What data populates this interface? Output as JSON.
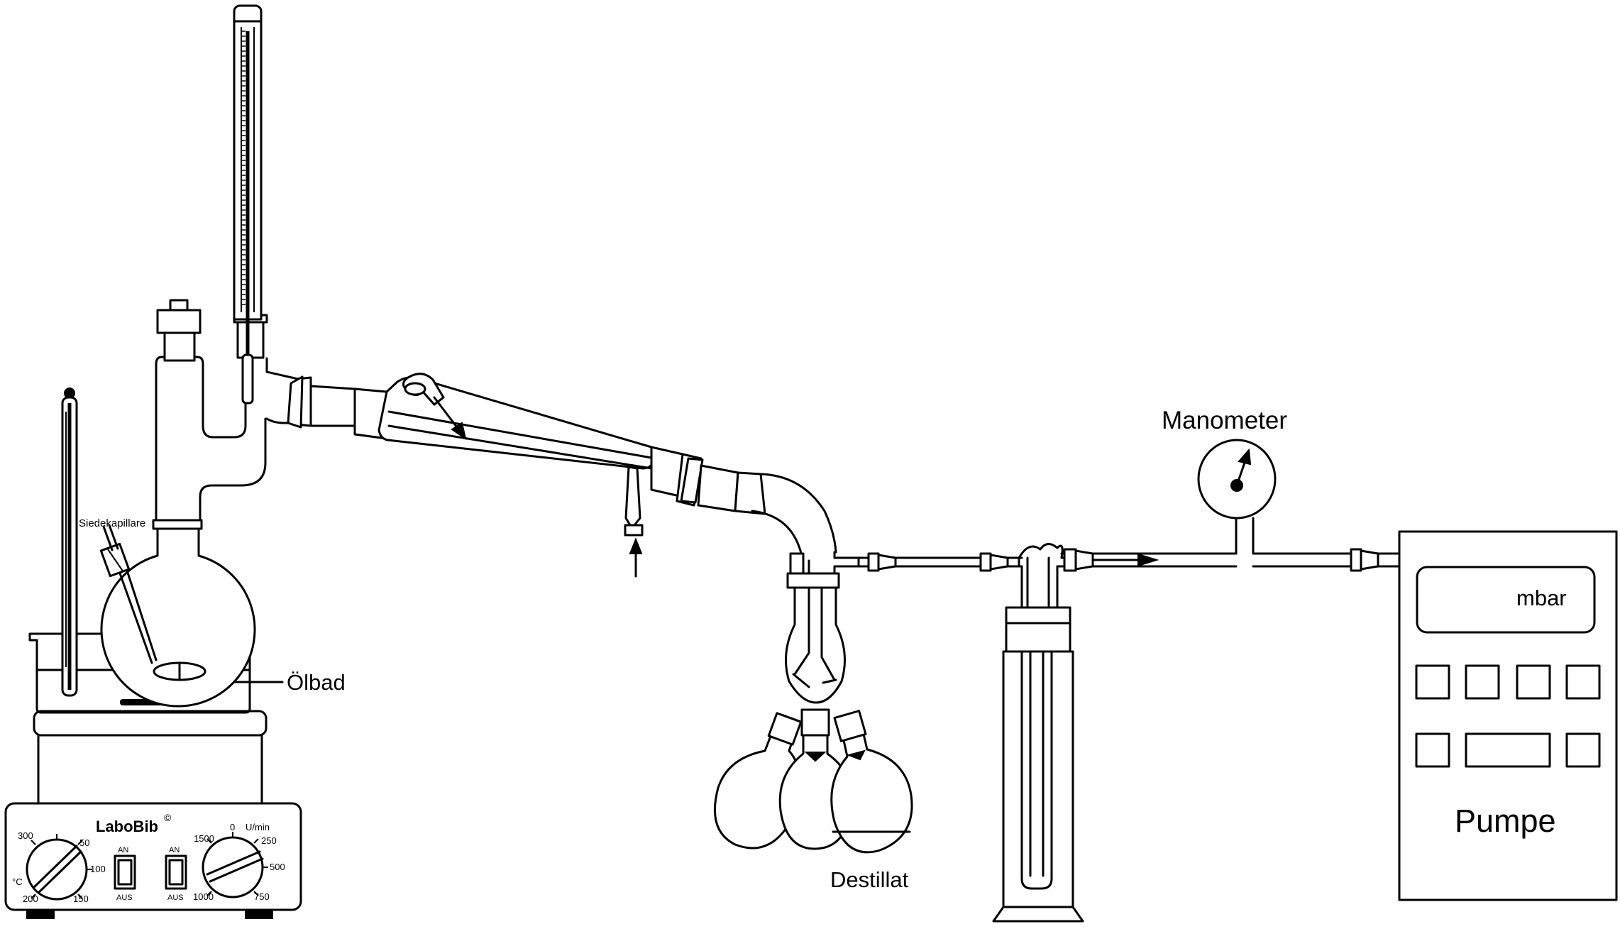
{
  "labels": {
    "siedekapillare": "Siedekapillare",
    "oelbad": "Ölbad",
    "destillat": "Destillat",
    "manometer": "Manometer",
    "pumpe": "Pumpe",
    "mbar": "mbar"
  },
  "stirrer": {
    "brand": "LaboBib",
    "brand_mark": "©",
    "temp_unit": "°C",
    "temp_scale": [
      "300",
      "50",
      "100",
      "150",
      "200"
    ],
    "speed_scale": [
      "1500",
      "0",
      "250",
      "500",
      "750",
      "1000"
    ],
    "speed_unit": "U/min",
    "switch_left": {
      "on": "AN",
      "off": "AUS"
    },
    "switch_right": {
      "on": "AN",
      "off": "AUS"
    }
  }
}
